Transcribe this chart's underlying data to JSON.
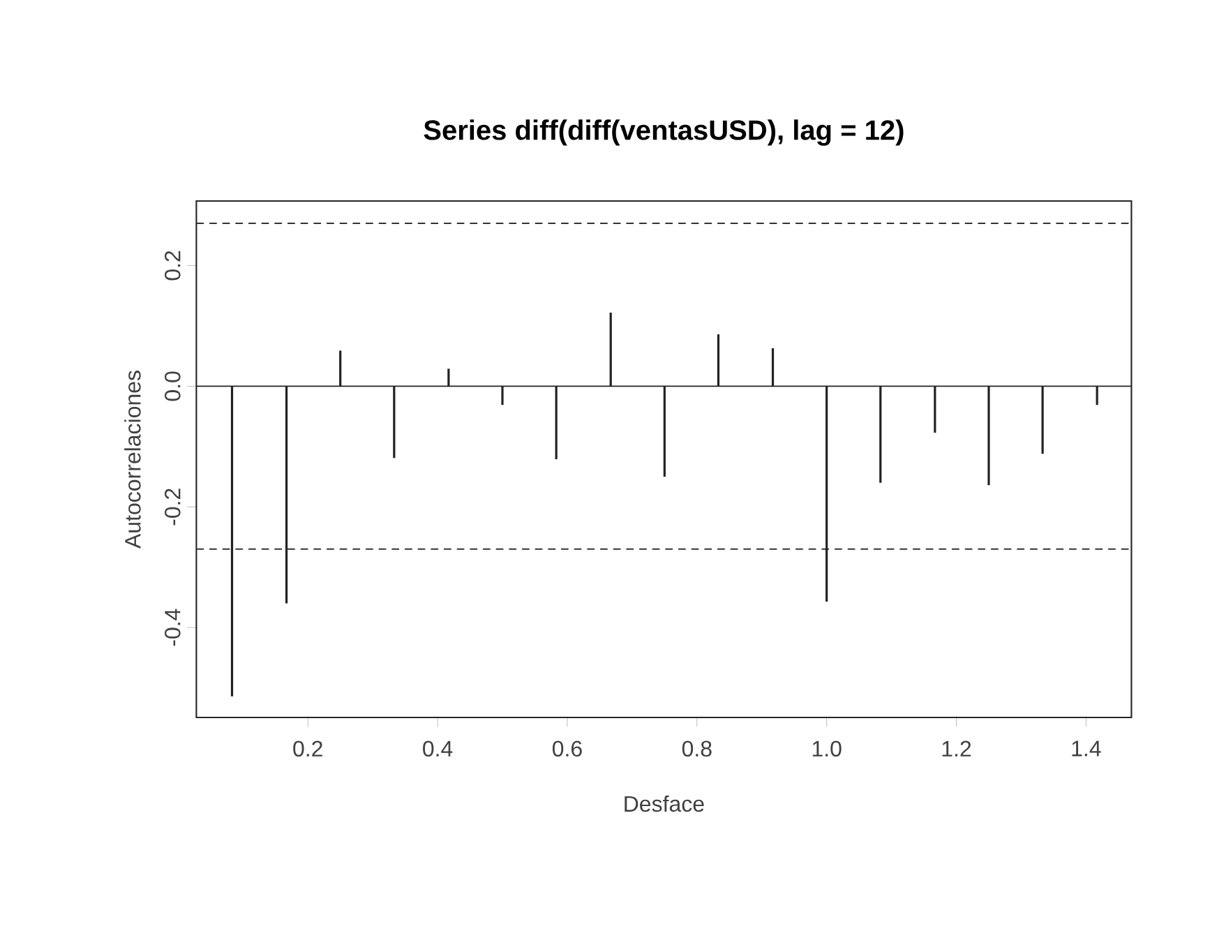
{
  "chart_data": {
    "type": "bar",
    "title": "Series  diff(diff(ventasUSD), lag = 12)",
    "xlabel": "Desface",
    "ylabel": "Autocorrelaciones",
    "x": [
      0.083,
      0.167,
      0.25,
      0.333,
      0.417,
      0.5,
      0.583,
      0.667,
      0.75,
      0.833,
      0.917,
      1.0,
      1.083,
      1.167,
      1.25,
      1.333,
      1.417
    ],
    "values": [
      -0.514,
      -0.36,
      0.059,
      -0.119,
      0.029,
      -0.031,
      -0.121,
      0.122,
      -0.15,
      0.086,
      0.063,
      -0.357,
      -0.16,
      -0.077,
      -0.164,
      -0.112,
      -0.031
    ],
    "color": "#222222",
    "xlim": [
      0.028,
      1.47
    ],
    "ylim": [
      -0.549,
      0.307
    ],
    "xticks": [
      0.2,
      0.4,
      0.6,
      0.8,
      {
        "value": 1.0,
        "label": "1.0"
      },
      1.2,
      1.4
    ],
    "yticks": [
      -0.4,
      -0.2,
      {
        "value": 0,
        "label": "0.0"
      },
      0.2
    ],
    "ref_lines": [
      {
        "axis": "y",
        "value": 0,
        "color": "#222222",
        "line_style": "solid"
      },
      {
        "axis": "y",
        "value": 0.27,
        "color": "#333333",
        "line_style": "dashed"
      },
      {
        "axis": "y",
        "value": -0.27,
        "color": "#333333",
        "line_style": "dashed"
      }
    ]
  }
}
